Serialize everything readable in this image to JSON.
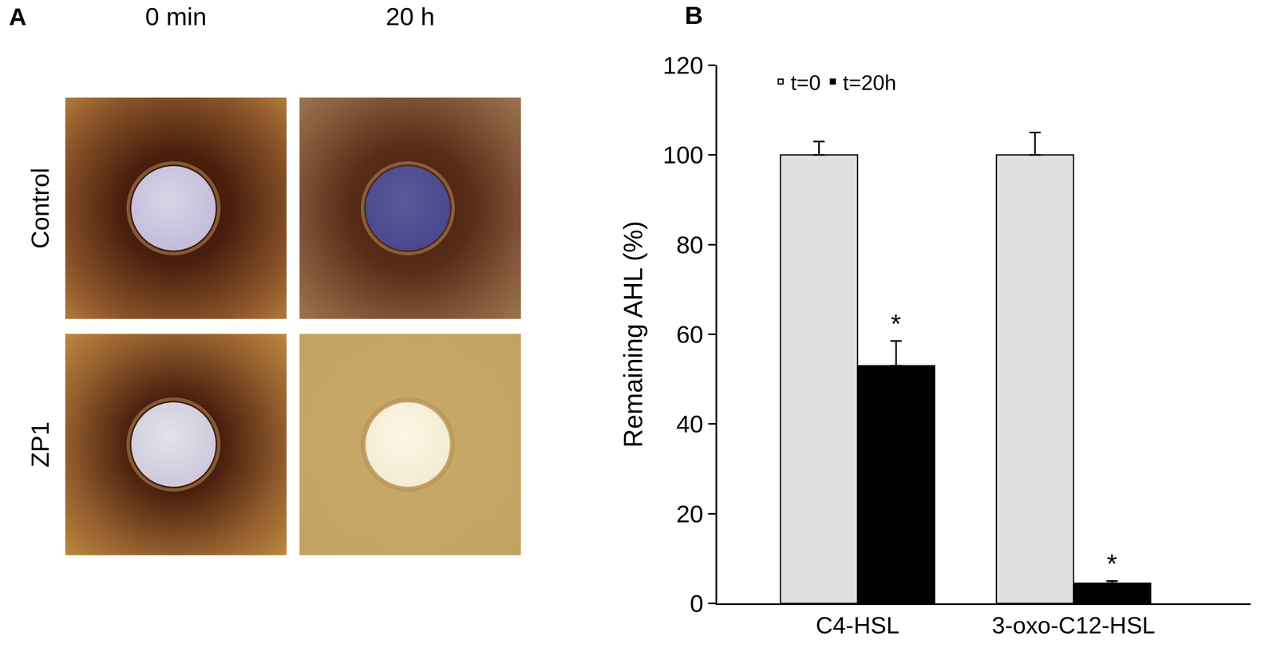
{
  "chart_data": {
    "type": "bar",
    "title": "B",
    "categories": [
      "C4-HSL",
      "3-oxo-C12-HSL"
    ],
    "series": [
      {
        "name": "t=0",
        "color": "#e0e0e0",
        "values": [
          100,
          100
        ],
        "errors": [
          3,
          5
        ]
      },
      {
        "name": "t=20h",
        "color": "#000000",
        "values": [
          53,
          4.5
        ],
        "errors": [
          5.5,
          0.5
        ]
      }
    ],
    "y_label": "Remaining AHL (%)",
    "ylim": [
      0,
      120
    ],
    "yticks": [
      0,
      20,
      40,
      60,
      80,
      100,
      120
    ],
    "grid": false,
    "legend": "top",
    "annotations": [
      {
        "text": "*",
        "category": "C4-HSL",
        "series": "t=20h"
      },
      {
        "text": "*",
        "category": "3-oxo-C12-HSL",
        "series": "t=20h"
      }
    ]
  },
  "panel_a": {
    "label": "A",
    "columns": [
      "0 min",
      "20 h"
    ],
    "rows": [
      "Control",
      "ZP1"
    ]
  }
}
